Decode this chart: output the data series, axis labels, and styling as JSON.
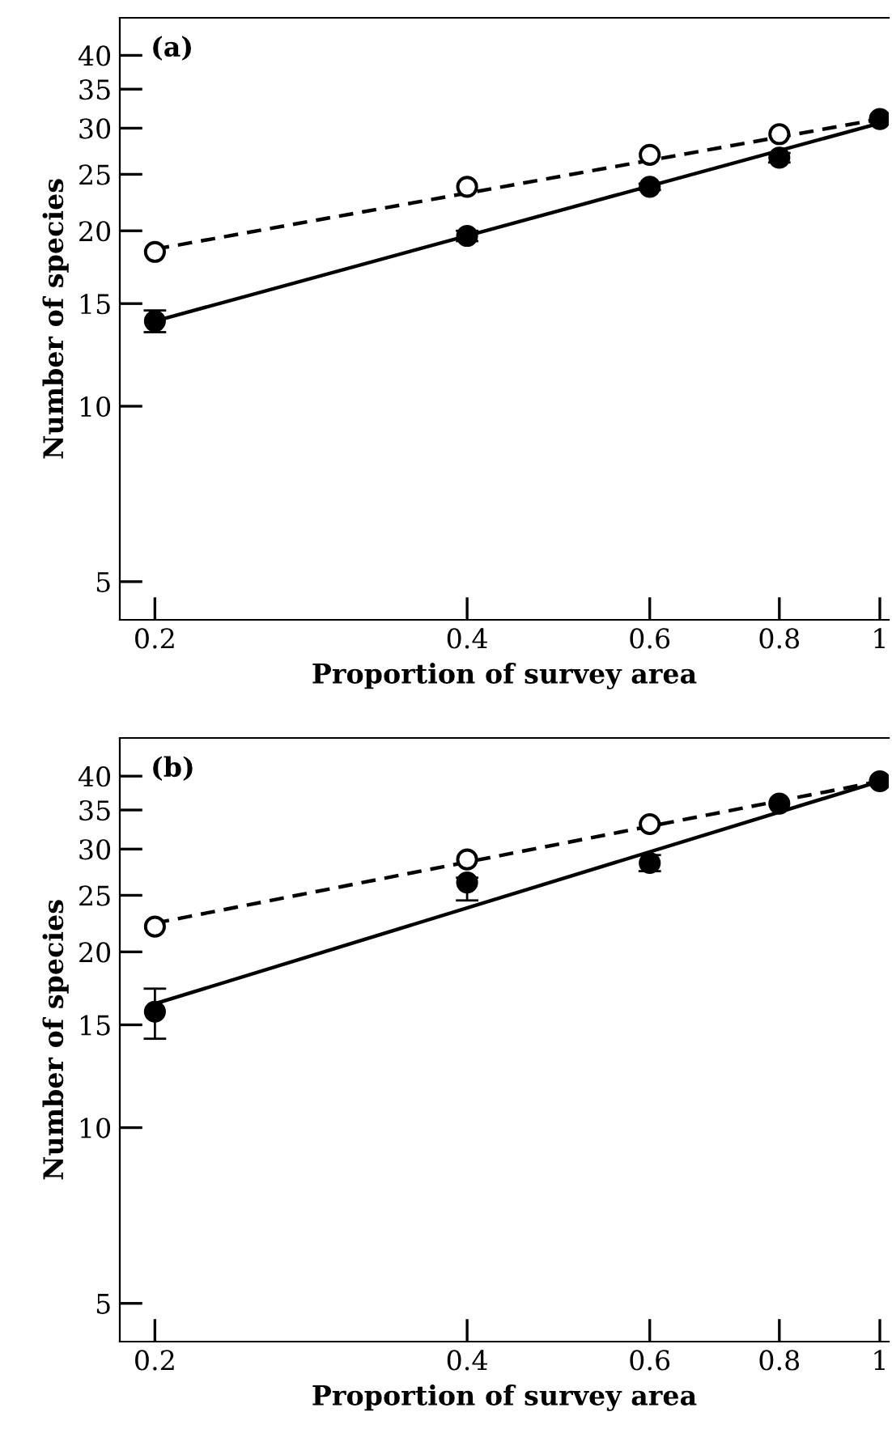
{
  "chart_data": [
    {
      "type": "scatter",
      "annotations": [
        "(a)"
      ],
      "xlabel": "Proportion of survey area",
      "ylabel": "Number of species",
      "log": "xy",
      "grid": false,
      "legend": false,
      "xlim": [
        0.185,
        1.02
      ],
      "xticks": [
        0.2,
        0.4,
        0.6,
        0.8,
        1
      ],
      "ylim": [
        4.3,
        46.4
      ],
      "yticks": [
        5,
        10,
        15,
        20,
        25,
        30,
        35,
        40
      ],
      "series": [
        {
          "type": "line",
          "color": "#000000",
          "line_style": "dashed",
          "marker": "none",
          "x": [
            0.2,
            1
          ],
          "values": [
            18.6,
            31.1
          ]
        },
        {
          "type": "line",
          "color": "#000000",
          "line_style": "solid",
          "marker": "none",
          "x": [
            0.2,
            1
          ],
          "values": [
            14.0,
            30.6
          ]
        },
        {
          "color": "#ffffff",
          "marker": "circle",
          "x": [
            0.2,
            0.4,
            0.6,
            0.8
          ],
          "values": [
            18.4,
            23.8,
            27.0,
            29.3
          ]
        },
        {
          "color": "#000000",
          "marker": "circle",
          "x": [
            0.2,
            0.4,
            0.6,
            0.8,
            1
          ],
          "values": [
            14.0,
            19.6,
            23.8,
            26.7,
            31.1
          ],
          "errors": [
            0.6,
            0.4,
            0.3,
            0.5,
            null
          ]
        }
      ]
    },
    {
      "type": "scatter",
      "annotations": [
        "(b)"
      ],
      "xlabel": "Proportion of survey area",
      "ylabel": "Number of species",
      "log": "xy",
      "grid": false,
      "legend": false,
      "xlim": [
        0.185,
        1.02
      ],
      "xticks": [
        0.2,
        0.4,
        0.6,
        0.8,
        1
      ],
      "ylim": [
        4.3,
        46.5
      ],
      "yticks": [
        5,
        10,
        15,
        20,
        25,
        30,
        35,
        40
      ],
      "series": [
        {
          "type": "line",
          "color": "#000000",
          "line_style": "dashed",
          "marker": "none",
          "x": [
            0.2,
            1
          ],
          "values": [
            22.4,
            39.2
          ]
        },
        {
          "type": "line",
          "color": "#000000",
          "line_style": "solid",
          "marker": "none",
          "x": [
            0.2,
            1
          ],
          "values": [
            16.3,
            39.2
          ]
        },
        {
          "color": "#ffffff",
          "marker": "circle",
          "x": [
            0.2,
            0.4,
            0.6
          ],
          "values": [
            22.1,
            28.8,
            33.1
          ]
        },
        {
          "color": "#000000",
          "marker": "circle",
          "x": [
            0.2,
            0.4,
            0.6,
            0.8,
            1
          ],
          "values": [
            15.8,
            26.3,
            28.4,
            35.9,
            39.2
          ],
          "errors": [
            [
              14.2,
              17.3
            ],
            [
              24.5,
              26.8
            ],
            0.9,
            null,
            null
          ]
        }
      ]
    }
  ]
}
